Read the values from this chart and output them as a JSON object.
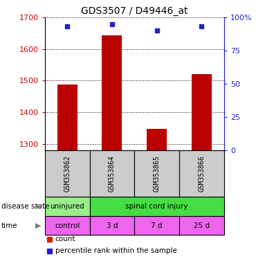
{
  "title": "GDS3507 / D49446_at",
  "samples": [
    "GSM353862",
    "GSM353864",
    "GSM353865",
    "GSM353866"
  ],
  "counts": [
    1487,
    1643,
    1347,
    1520
  ],
  "percentiles": [
    93,
    95,
    90,
    93
  ],
  "ylim_left": [
    1280,
    1700
  ],
  "ylim_right": [
    0,
    100
  ],
  "yticks_left": [
    1300,
    1400,
    1500,
    1600,
    1700
  ],
  "yticks_right": [
    0,
    25,
    50,
    75,
    100
  ],
  "ytick_labels_right": [
    "0",
    "25",
    "50",
    "75",
    "100%"
  ],
  "bar_color": "#bb0000",
  "dot_color": "#2222cc",
  "bar_width": 0.45,
  "time_labels": [
    "control",
    "3 d",
    "7 d",
    "25 d"
  ],
  "left_tick_color": "#cc0000",
  "right_tick_color": "#2222cc",
  "sample_box_color": "#cccccc",
  "disease_green_light": "#99ee88",
  "disease_green_dark": "#44dd44",
  "time_pink": "#ee66ee",
  "legend_red": "#cc2200",
  "legend_blue": "#2222cc"
}
